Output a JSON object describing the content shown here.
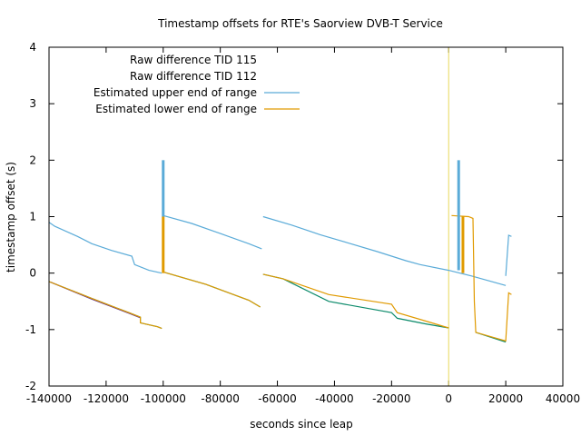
{
  "chart_data": {
    "type": "line",
    "title": "Timestamp offsets for RTE's Saorview DVB-T Service",
    "xlabel": "seconds since leap",
    "ylabel": "timestamp offset (s)",
    "xlim": [
      -140000,
      40000
    ],
    "ylim": [
      -2,
      4
    ],
    "x_ticks": [
      "-140000",
      "-120000",
      "-100000",
      "-80000",
      "-60000",
      "-40000",
      "-20000",
      "0",
      "20000",
      "40000"
    ],
    "y_ticks": [
      "-2",
      "-1",
      "0",
      "1",
      "2",
      "3",
      "4"
    ],
    "legend_position": "top-left",
    "leap_marker_x": 0,
    "leap_marker_color": "#e8d85a",
    "series": [
      {
        "name": "Raw difference TID 115",
        "color": "#0b8a6a",
        "segments": [
          [
            [
              -140000,
              -0.15
            ],
            [
              -125000,
              -0.45
            ],
            [
              -112000,
              -0.7
            ],
            [
              -108000,
              -0.78
            ],
            [
              -108000,
              -0.88
            ],
            [
              -102000,
              -0.95
            ],
            [
              -100500,
              -0.98
            ]
          ],
          [
            [
              -100000,
              0.02
            ],
            [
              -85000,
              -0.2
            ],
            [
              -70000,
              -0.48
            ],
            [
              -66000,
              -0.6
            ]
          ],
          [
            [
              -65000,
              -0.02
            ],
            [
              -58000,
              -0.1
            ],
            [
              -42000,
              -0.5
            ],
            [
              -20000,
              -0.7
            ],
            [
              -18000,
              -0.8
            ],
            [
              -8000,
              -0.9
            ],
            [
              0,
              -0.97
            ]
          ],
          [
            [
              9500,
              -1.05
            ],
            [
              20000,
              -1.22
            ]
          ]
        ]
      },
      {
        "name": "Raw difference TID 112",
        "color": "#5a2d8a",
        "segments": [
          [
            [
              -139500,
              -0.16
            ],
            [
              -125000,
              -0.46
            ],
            [
              -112000,
              -0.71
            ],
            [
              -108000,
              -0.79
            ]
          ]
        ]
      },
      {
        "name": "Estimated upper end of range",
        "color": "#5aabd8",
        "segments": [
          [
            [
              -140000,
              0.9
            ],
            [
              -138000,
              0.83
            ],
            [
              -130000,
              0.65
            ],
            [
              -125000,
              0.52
            ],
            [
              -118000,
              0.4
            ],
            [
              -111000,
              0.3
            ],
            [
              -110000,
              0.15
            ],
            [
              -105000,
              0.05
            ],
            [
              -100500,
              0.0
            ]
          ],
          [
            [
              -100000,
              1.02
            ],
            [
              -90000,
              0.88
            ],
            [
              -80000,
              0.7
            ],
            [
              -70000,
              0.52
            ],
            [
              -65500,
              0.43
            ]
          ],
          [
            [
              -65000,
              1.0
            ],
            [
              -55000,
              0.85
            ],
            [
              -45000,
              0.68
            ],
            [
              -35000,
              0.53
            ],
            [
              -25000,
              0.38
            ],
            [
              -15000,
              0.22
            ],
            [
              -10000,
              0.15
            ],
            [
              0,
              0.05
            ],
            [
              8000,
              -0.05
            ],
            [
              20000,
              -0.22
            ]
          ],
          [
            [
              20000,
              -0.05
            ],
            [
              21000,
              0.67
            ],
            [
              22000,
              0.65
            ]
          ]
        ]
      },
      {
        "name": "Estimated lower end of range",
        "color": "#e09a00",
        "segments": [
          [
            [
              -140000,
              -0.15
            ],
            [
              -125000,
              -0.45
            ],
            [
              -112000,
              -0.7
            ],
            [
              -108000,
              -0.78
            ],
            [
              -108000,
              -0.88
            ],
            [
              -102000,
              -0.95
            ],
            [
              -100500,
              -0.98
            ]
          ],
          [
            [
              -100000,
              0.02
            ],
            [
              -85000,
              -0.2
            ],
            [
              -70000,
              -0.48
            ],
            [
              -66000,
              -0.6
            ]
          ],
          [
            [
              -65000,
              -0.02
            ],
            [
              -58000,
              -0.1
            ],
            [
              -42000,
              -0.38
            ],
            [
              -20000,
              -0.55
            ],
            [
              -18000,
              -0.7
            ],
            [
              -8000,
              -0.85
            ],
            [
              0,
              -0.97
            ]
          ],
          [
            [
              1000,
              1.02
            ],
            [
              7000,
              1.0
            ],
            [
              8500,
              0.97
            ],
            [
              9000,
              -0.5
            ],
            [
              9500,
              -1.05
            ],
            [
              20000,
              -1.2
            ],
            [
              21000,
              -0.35
            ],
            [
              22000,
              -0.38
            ]
          ]
        ]
      }
    ],
    "spikes": [
      {
        "series_index": 2,
        "x": -100000,
        "y_from": 1.0,
        "y_to": 2.0
      },
      {
        "series_index": 2,
        "x": 3500,
        "y_from": 0.05,
        "y_to": 2.0
      },
      {
        "series_index": 3,
        "x": -100000,
        "y_from": 0.0,
        "y_to": 1.0
      },
      {
        "series_index": 3,
        "x": 5000,
        "y_from": 0.0,
        "y_to": 1.0
      }
    ]
  }
}
